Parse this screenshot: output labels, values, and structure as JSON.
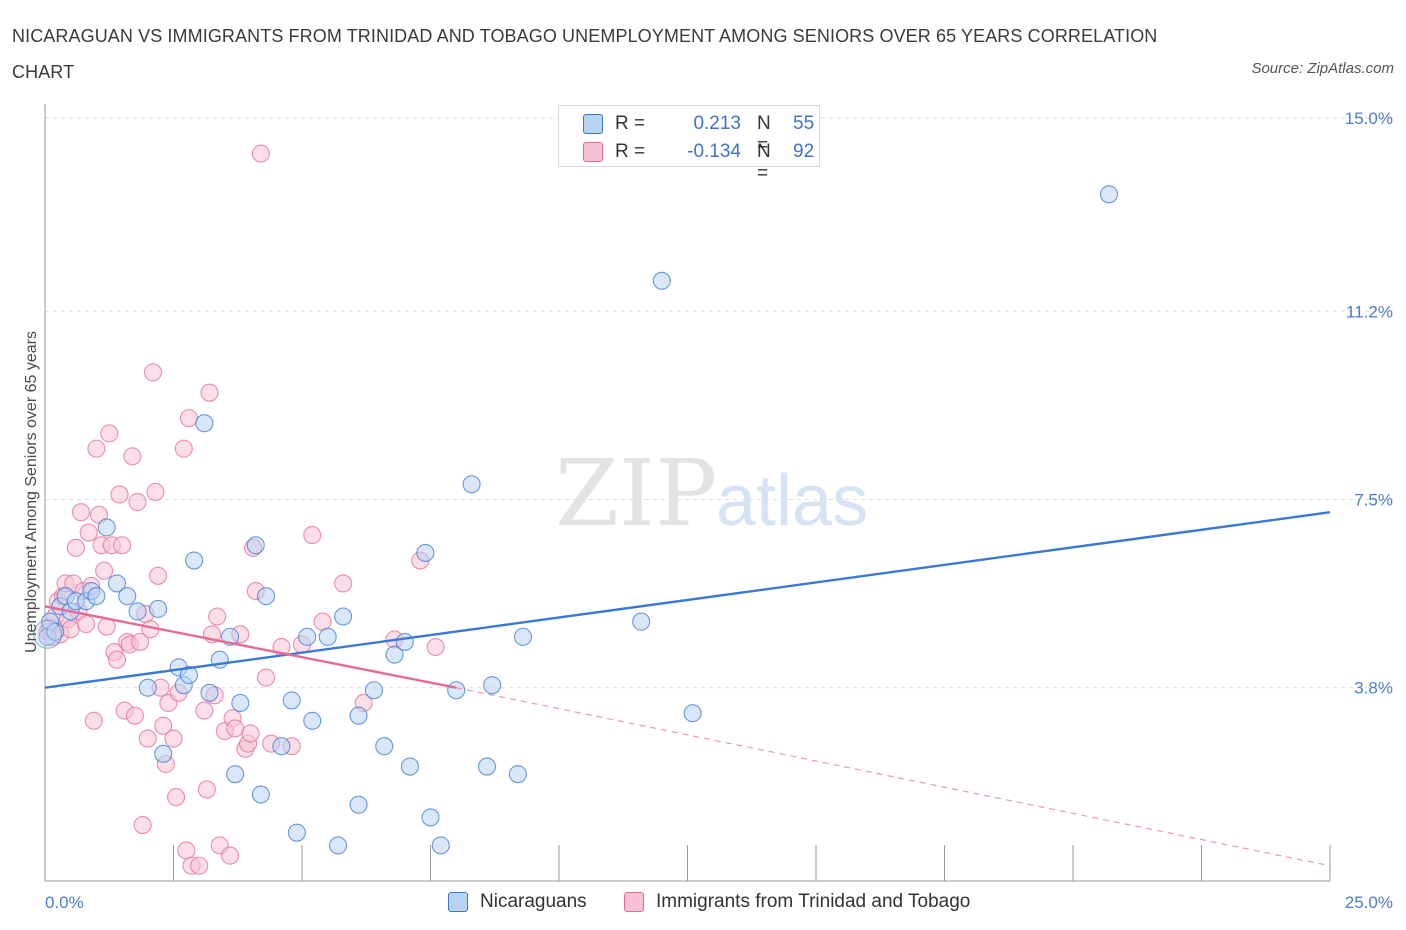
{
  "title": "NICARAGUAN VS IMMIGRANTS FROM TRINIDAD AND TOBAGO UNEMPLOYMENT AMONG SENIORS OVER 65 YEARS CORRELATION CHART",
  "source": "Source: ZipAtlas.com",
  "watermark": {
    "zip": "ZIP",
    "atlas": "atlas"
  },
  "legend": {
    "r_label": "R =",
    "n_label": "N =",
    "rows": [
      {
        "r": "0.213",
        "n": "55"
      },
      {
        "r": "-0.134",
        "n": "92"
      }
    ]
  },
  "colors": {
    "blue": "#3a78d4",
    "blue_fill": "#b9d3f3",
    "pink": "#e46b95",
    "pink_fill": "#f7c2d3",
    "grid": "#dddddd",
    "tick_text": "#4a7cc9"
  },
  "chart_data": {
    "type": "scatter",
    "title": "NICARAGUAN VS IMMIGRANTS FROM TRINIDAD AND TOBAGO UNEMPLOYMENT AMONG SENIORS OVER 65 YEARS CORRELATION CHART",
    "xlabel": "",
    "ylabel": "Unemployment Among Seniors over 65 years",
    "xlim": [
      0,
      25
    ],
    "ylim": [
      0,
      15
    ],
    "x_ticks": [
      0,
      2.5,
      5,
      7.5,
      10,
      12.5,
      15,
      17.5,
      20,
      22.5,
      25
    ],
    "x_tick_labels": [
      {
        "value": 0,
        "label": "0.0%"
      },
      {
        "value": 25,
        "label": "25.0%"
      }
    ],
    "y_ticks": [
      {
        "value": 3.8,
        "label": "3.8%"
      },
      {
        "value": 7.5,
        "label": "7.5%"
      },
      {
        "value": 11.2,
        "label": "11.2%"
      },
      {
        "value": 15,
        "label": "15.0%"
      }
    ],
    "series": [
      {
        "name": "Nicaraguans",
        "color": "#3a78d4",
        "fill": "#b9d3f3",
        "trend": {
          "x": [
            0,
            25
          ],
          "y": [
            3.8,
            7.25
          ],
          "dashed_to": null
        },
        "points": [
          [
            0.05,
            4.8
          ],
          [
            0.1,
            5.1
          ],
          [
            0.2,
            4.9
          ],
          [
            0.3,
            5.4
          ],
          [
            0.4,
            5.6
          ],
          [
            0.5,
            5.3
          ],
          [
            0.6,
            5.5
          ],
          [
            0.8,
            5.5
          ],
          [
            0.9,
            5.7
          ],
          [
            1.0,
            5.6
          ],
          [
            1.2,
            6.95
          ],
          [
            1.4,
            5.85
          ],
          [
            1.6,
            5.6
          ],
          [
            1.8,
            5.3
          ],
          [
            2.0,
            3.8
          ],
          [
            2.2,
            5.35
          ],
          [
            2.3,
            2.5
          ],
          [
            2.6,
            4.2
          ],
          [
            2.7,
            3.85
          ],
          [
            2.8,
            4.05
          ],
          [
            2.9,
            6.3
          ],
          [
            3.1,
            9.0
          ],
          [
            3.2,
            3.7
          ],
          [
            3.4,
            4.35
          ],
          [
            3.6,
            4.8
          ],
          [
            3.7,
            2.1
          ],
          [
            3.8,
            3.5
          ],
          [
            4.1,
            6.6
          ],
          [
            4.2,
            1.7
          ],
          [
            4.3,
            5.6
          ],
          [
            4.6,
            2.65
          ],
          [
            4.8,
            3.55
          ],
          [
            4.9,
            0.95
          ],
          [
            5.1,
            4.8
          ],
          [
            5.2,
            3.15
          ],
          [
            5.5,
            4.8
          ],
          [
            5.7,
            0.7
          ],
          [
            5.8,
            5.2
          ],
          [
            6.1,
            1.5
          ],
          [
            6.1,
            3.25
          ],
          [
            6.4,
            3.75
          ],
          [
            6.6,
            2.65
          ],
          [
            6.8,
            4.45
          ],
          [
            7.0,
            4.7
          ],
          [
            7.1,
            2.25
          ],
          [
            7.4,
            6.45
          ],
          [
            7.5,
            1.25
          ],
          [
            7.7,
            0.7
          ],
          [
            8.0,
            3.75
          ],
          [
            8.3,
            7.8
          ],
          [
            8.6,
            2.25
          ],
          [
            8.7,
            3.85
          ],
          [
            9.2,
            2.1
          ],
          [
            9.3,
            4.8
          ],
          [
            11.6,
            5.1
          ],
          [
            12.0,
            11.8
          ],
          [
            12.6,
            3.3
          ],
          [
            20.7,
            13.5
          ]
        ]
      },
      {
        "name": "Immigrants from Trinidad and Tobago",
        "color": "#e46b95",
        "fill": "#f7c2d3",
        "trend": {
          "x": [
            0,
            8
          ],
          "y": [
            5.4,
            3.8
          ],
          "dashed_to": {
            "x": 25,
            "y": 0.3
          }
        },
        "points": [
          [
            0.05,
            4.9
          ],
          [
            0.1,
            5.0
          ],
          [
            0.15,
            4.8
          ],
          [
            0.2,
            5.2
          ],
          [
            0.25,
            5.5
          ],
          [
            0.3,
            4.85
          ],
          [
            0.35,
            5.6
          ],
          [
            0.4,
            5.85
          ],
          [
            0.45,
            5.15
          ],
          [
            0.5,
            4.95
          ],
          [
            0.55,
            5.85
          ],
          [
            0.6,
            6.55
          ],
          [
            0.65,
            5.3
          ],
          [
            0.7,
            7.25
          ],
          [
            0.75,
            5.7
          ],
          [
            0.8,
            5.05
          ],
          [
            0.85,
            6.85
          ],
          [
            0.9,
            5.8
          ],
          [
            0.95,
            3.15
          ],
          [
            1.0,
            8.5
          ],
          [
            1.05,
            7.2
          ],
          [
            1.1,
            6.6
          ],
          [
            1.15,
            6.1
          ],
          [
            1.2,
            5.0
          ],
          [
            1.25,
            8.8
          ],
          [
            1.3,
            6.6
          ],
          [
            1.35,
            4.5
          ],
          [
            1.4,
            4.35
          ],
          [
            1.45,
            7.6
          ],
          [
            1.5,
            6.6
          ],
          [
            1.55,
            3.35
          ],
          [
            1.6,
            4.7
          ],
          [
            1.65,
            4.65
          ],
          [
            1.7,
            8.35
          ],
          [
            1.75,
            3.25
          ],
          [
            1.8,
            7.45
          ],
          [
            1.85,
            4.7
          ],
          [
            1.9,
            1.1
          ],
          [
            1.95,
            5.25
          ],
          [
            2.0,
            2.8
          ],
          [
            2.05,
            4.95
          ],
          [
            2.1,
            10.0
          ],
          [
            2.15,
            7.65
          ],
          [
            2.2,
            6.0
          ],
          [
            2.25,
            3.8
          ],
          [
            2.3,
            3.05
          ],
          [
            2.35,
            2.3
          ],
          [
            2.4,
            3.5
          ],
          [
            2.5,
            2.8
          ],
          [
            2.55,
            1.65
          ],
          [
            2.6,
            3.7
          ],
          [
            2.7,
            8.5
          ],
          [
            2.75,
            0.6
          ],
          [
            2.8,
            9.1
          ],
          [
            2.85,
            0.3
          ],
          [
            3.0,
            0.3
          ],
          [
            3.1,
            3.35
          ],
          [
            3.15,
            1.8
          ],
          [
            3.2,
            9.6
          ],
          [
            3.25,
            4.85
          ],
          [
            3.3,
            3.65
          ],
          [
            3.35,
            5.2
          ],
          [
            3.4,
            0.7
          ],
          [
            3.5,
            2.95
          ],
          [
            3.6,
            0.5
          ],
          [
            3.65,
            3.2
          ],
          [
            3.7,
            3.0
          ],
          [
            3.8,
            4.85
          ],
          [
            3.9,
            2.6
          ],
          [
            3.95,
            2.7
          ],
          [
            4.0,
            2.9
          ],
          [
            4.05,
            6.55
          ],
          [
            4.1,
            5.7
          ],
          [
            4.2,
            14.3
          ],
          [
            4.3,
            4.0
          ],
          [
            4.4,
            2.7
          ],
          [
            4.6,
            4.6
          ],
          [
            4.8,
            2.65
          ],
          [
            5.0,
            4.65
          ],
          [
            5.2,
            6.8
          ],
          [
            5.4,
            5.1
          ],
          [
            5.8,
            5.85
          ],
          [
            6.2,
            3.5
          ],
          [
            6.8,
            4.75
          ],
          [
            7.3,
            6.3
          ],
          [
            7.6,
            4.6
          ]
        ]
      }
    ]
  },
  "bottom_legend": [
    {
      "label": "Nicaraguans"
    },
    {
      "label": "Immigrants from Trinidad and Tobago"
    }
  ]
}
